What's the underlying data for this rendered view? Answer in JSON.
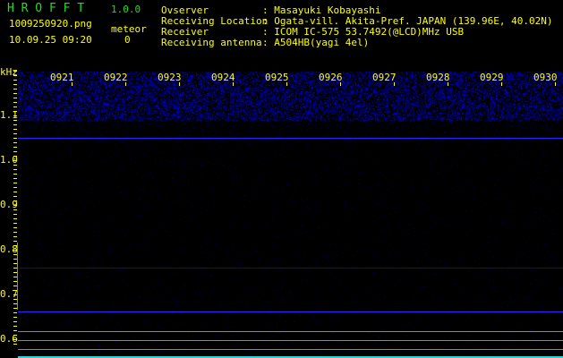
{
  "app": {
    "name": "H R O F F T",
    "version": "1.0.0"
  },
  "file": {
    "name": "1009250920.png",
    "datetime": "10.09.25 09:20"
  },
  "meteor": {
    "label": "meteor",
    "count": "0"
  },
  "info": [
    {
      "label": "Ovserver",
      "value": ": Masayuki Kobayashi"
    },
    {
      "label": "Receiving Location",
      "value": ": Ogata-vill. Akita-Pref. JAPAN (139.96E, 40.02N)"
    },
    {
      "label": "Receiver",
      "value": ": ICOM IC-575 53.7492(@LCD)MHz USB"
    },
    {
      "label": "Receiving antenna",
      "value": ": A504HB(yagi 4el)"
    }
  ],
  "chart_data": {
    "type": "heatmap",
    "ylabel": "kHz",
    "y_ticks": [
      "1.1",
      "1.0",
      "0.9",
      "0.8",
      "0.7",
      "0.6"
    ],
    "x_ticks": [
      "0921",
      "0922",
      "0923",
      "0924",
      "0925",
      "0926",
      "0927",
      "0928",
      "0929",
      "0930"
    ],
    "colors": {
      "axis": "#ffff00",
      "signal": "#1a1aff",
      "noise": "#0a0a80",
      "marker": "#888888"
    }
  }
}
